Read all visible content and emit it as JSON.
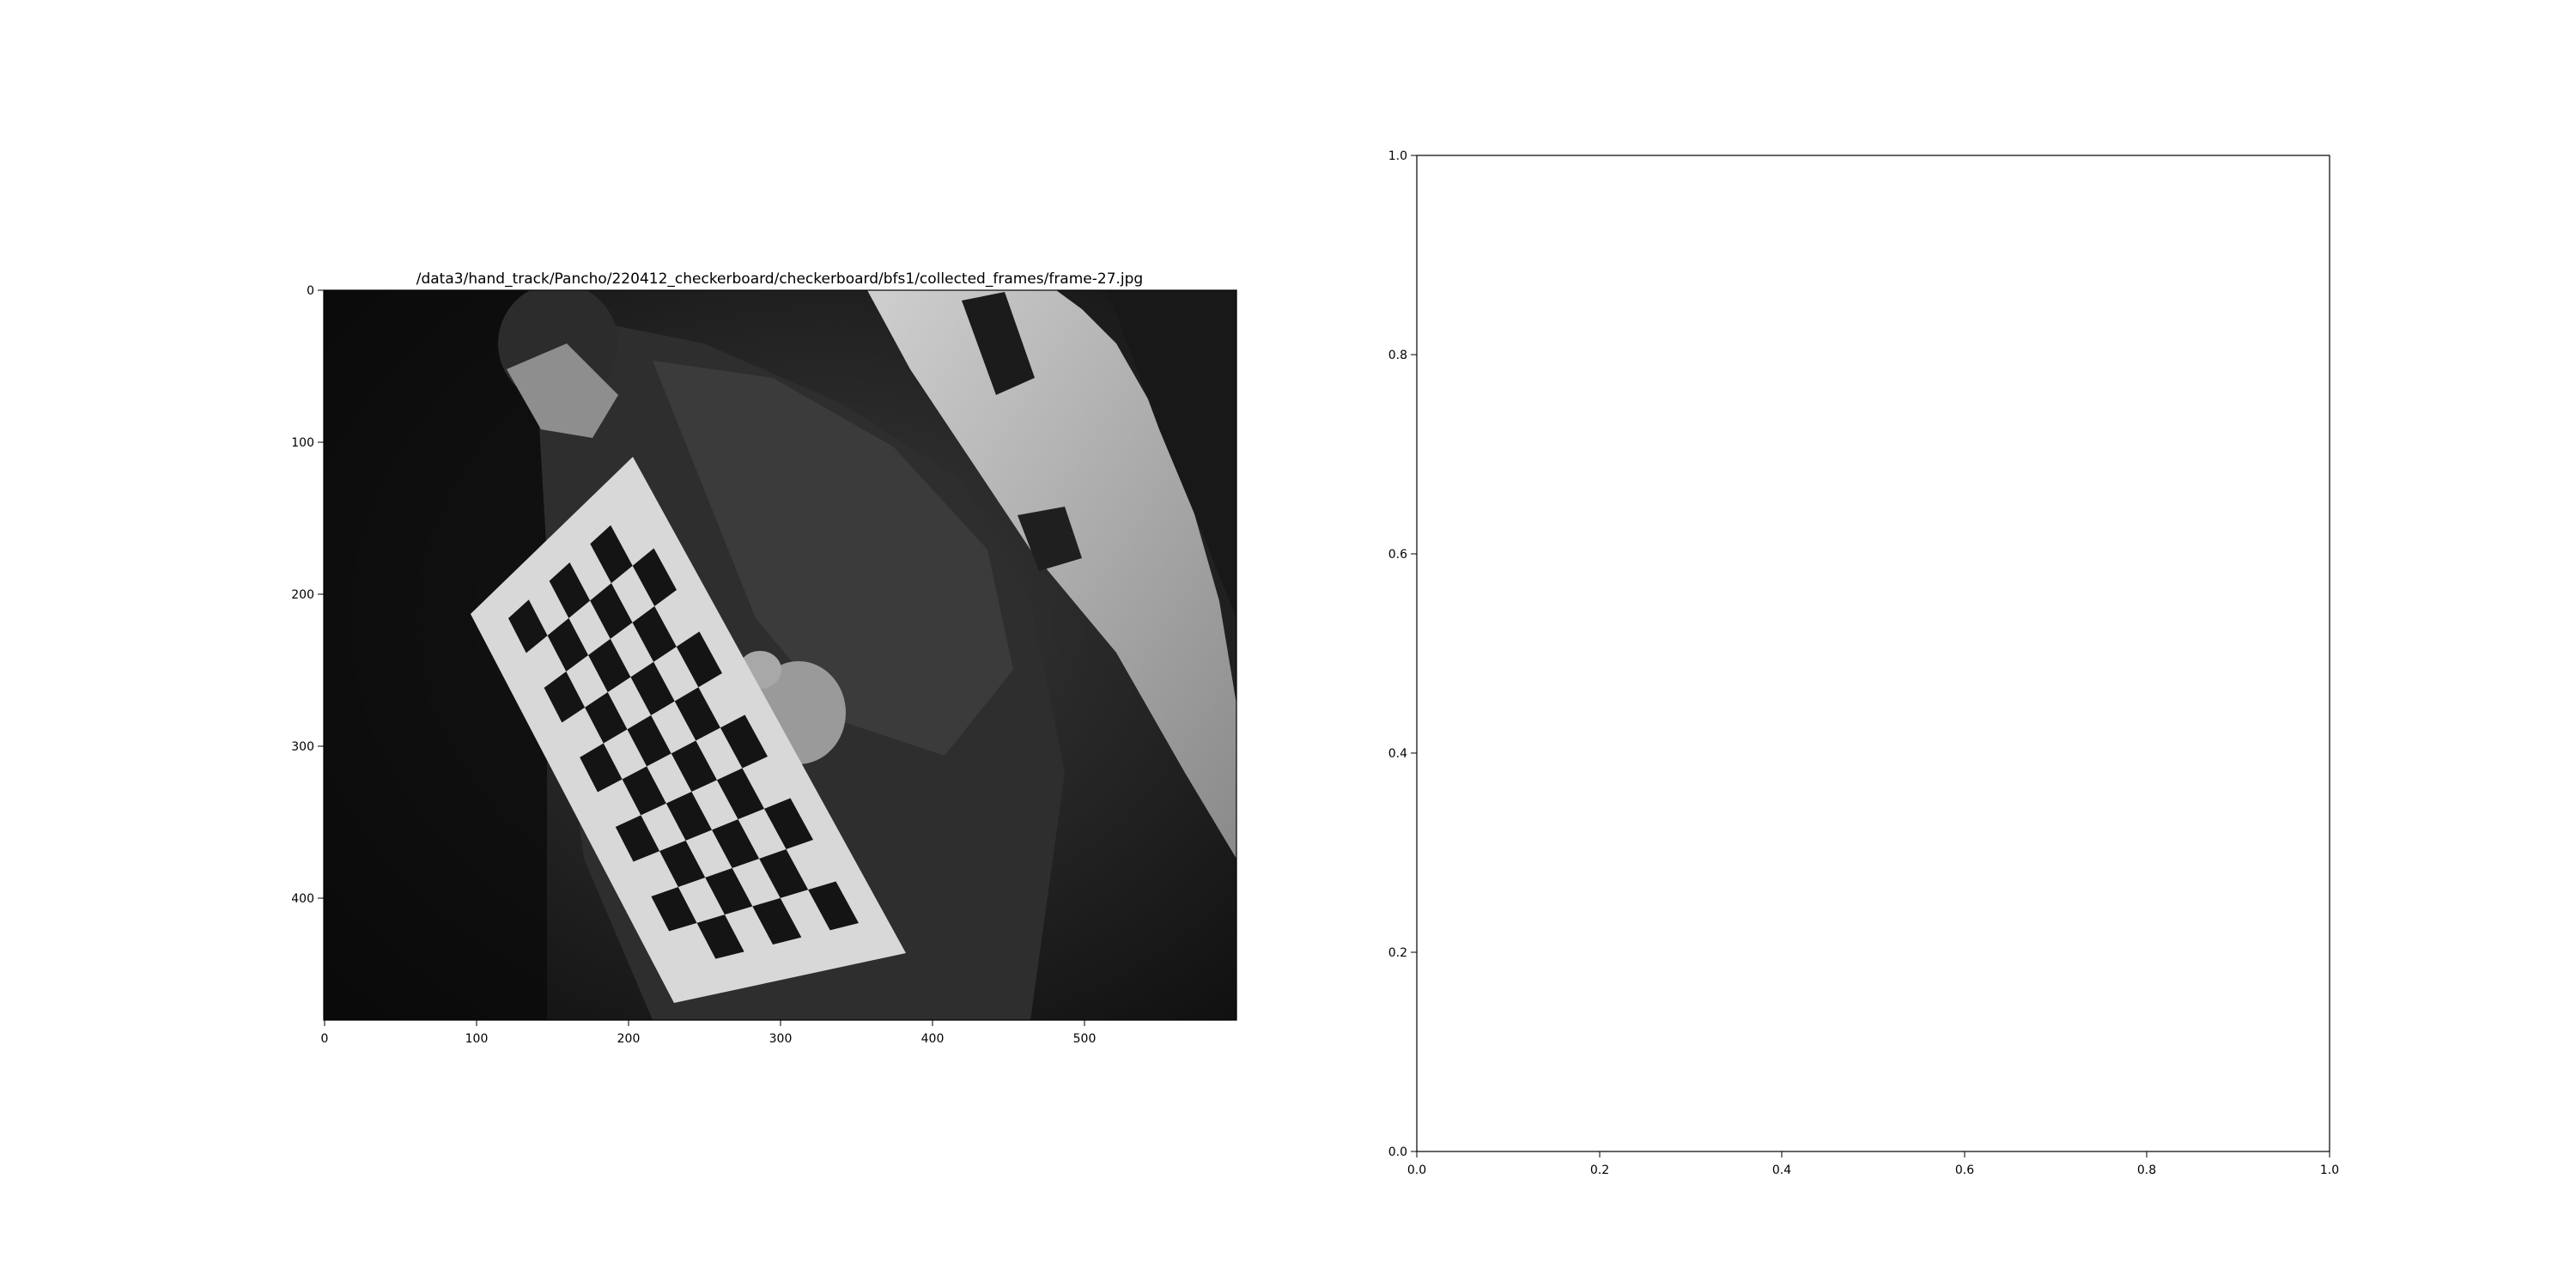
{
  "figure": {
    "left_panel": {
      "title": "/data3/hand_track/Pancho/220412_checkerboard/checkerboard/bfs1/collected_frames/frame-27.jpg",
      "image_description_icon": "grayscale-camera-frame-checkerboard",
      "x_ticks": [
        "0",
        "100",
        "200",
        "300",
        "400",
        "500"
      ],
      "y_ticks": [
        "0",
        "100",
        "200",
        "300",
        "400"
      ]
    },
    "right_panel": {
      "x_ticks": [
        "0.0",
        "0.2",
        "0.4",
        "0.6",
        "0.8",
        "1.0"
      ],
      "y_ticks": [
        "0.0",
        "0.2",
        "0.4",
        "0.6",
        "0.8",
        "1.0"
      ]
    }
  },
  "chart_data": [
    {
      "type": "image",
      "title": "/data3/hand_track/Pancho/220412_checkerboard/checkerboard/bfs1/collected_frames/frame-27.jpg",
      "xlim": [
        0,
        600
      ],
      "ylim": [
        480,
        0
      ],
      "xticks": [
        0,
        100,
        200,
        300,
        400,
        500
      ],
      "yticks": [
        0,
        100,
        200,
        300,
        400
      ]
    },
    {
      "type": "scatter",
      "x": [],
      "y": [],
      "xlim": [
        0.0,
        1.0
      ],
      "ylim": [
        0.0,
        1.0
      ],
      "xticks": [
        0.0,
        0.2,
        0.4,
        0.6,
        0.8,
        1.0
      ],
      "yticks": [
        0.0,
        0.2,
        0.4,
        0.6,
        0.8,
        1.0
      ]
    }
  ]
}
